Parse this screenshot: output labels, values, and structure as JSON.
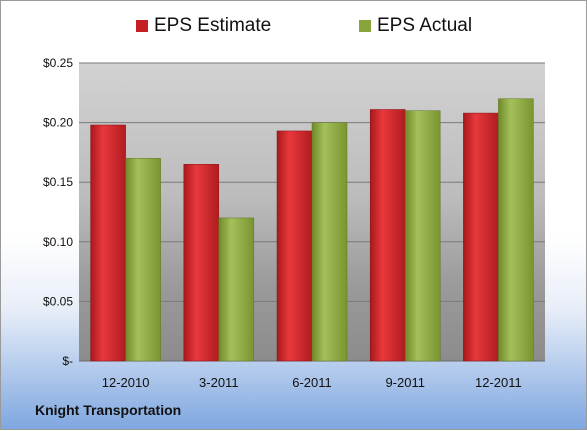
{
  "chart_data": {
    "type": "bar",
    "categories": [
      "12-2010",
      "3-2011",
      "6-2011",
      "9-2011",
      "12-2011"
    ],
    "series": [
      {
        "name": "EPS Estimate",
        "values": [
          0.198,
          0.165,
          0.193,
          0.211,
          0.208
        ],
        "color": "#c42024"
      },
      {
        "name": "EPS Actual",
        "values": [
          0.17,
          0.12,
          0.2,
          0.21,
          0.22
        ],
        "color": "#8aa43c"
      }
    ],
    "yticks": [
      "$-",
      "$0.05",
      "$0.10",
      "$0.15",
      "$0.20",
      "$0.25"
    ],
    "ylim": [
      0,
      0.25
    ],
    "grid": true,
    "legend_position": "top"
  },
  "caption": "Knight Transportation"
}
